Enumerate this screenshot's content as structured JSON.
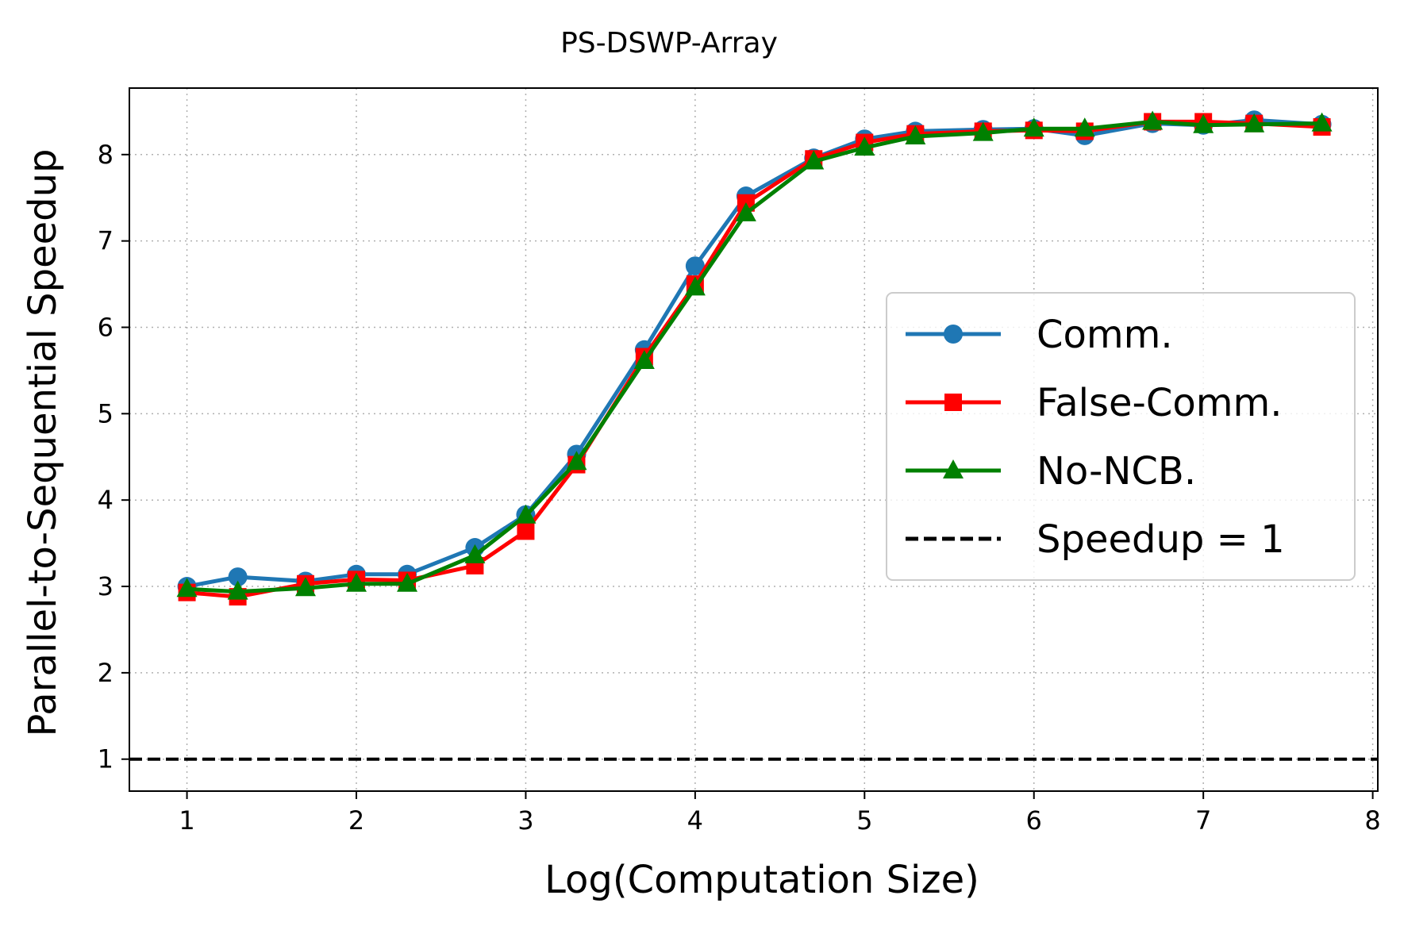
{
  "chart_data": {
    "type": "line",
    "title": "PS-DSWP-Array",
    "xlabel": "Log(Computation Size)",
    "ylabel": "Parallel-to-Sequential Speedup",
    "xlim": [
      0.66,
      8.03
    ],
    "ylim": [
      0.63,
      8.77
    ],
    "xticks": [
      "1",
      "2",
      "3",
      "4",
      "5",
      "6",
      "7",
      "8"
    ],
    "yticks": [
      "1",
      "2",
      "3",
      "4",
      "5",
      "6",
      "7",
      "8"
    ],
    "grid": true,
    "legend_position": "center-right",
    "x": [
      1.0,
      1.3,
      1.7,
      2.0,
      2.3,
      2.7,
      3.0,
      3.3,
      3.7,
      4.0,
      4.3,
      4.7,
      5.0,
      5.3,
      5.7,
      6.0,
      6.3,
      6.7,
      7.0,
      7.3,
      7.7
    ],
    "series": [
      {
        "name": "Comm.",
        "color": "#1f77b4",
        "marker": "circle",
        "values": [
          3.0,
          3.11,
          3.06,
          3.14,
          3.14,
          3.45,
          3.83,
          4.53,
          5.74,
          6.71,
          7.52,
          7.96,
          8.18,
          8.27,
          8.29,
          8.3,
          8.22,
          8.36,
          8.34,
          8.4,
          8.35
        ]
      },
      {
        "name": "False-Comm.",
        "color": "#ff0000",
        "marker": "square",
        "values": [
          2.93,
          2.88,
          3.03,
          3.08,
          3.07,
          3.24,
          3.64,
          4.41,
          5.66,
          6.5,
          7.44,
          7.95,
          8.14,
          8.24,
          8.27,
          8.28,
          8.27,
          8.38,
          8.38,
          8.36,
          8.32
        ]
      },
      {
        "name": "No-NCB.",
        "color": "#008000",
        "marker": "triangle",
        "values": [
          2.97,
          2.94,
          2.98,
          3.03,
          3.03,
          3.36,
          3.82,
          4.44,
          5.61,
          6.46,
          7.32,
          7.92,
          8.08,
          8.21,
          8.25,
          8.3,
          8.3,
          8.38,
          8.34,
          8.35,
          8.36
        ]
      }
    ],
    "reference_line": {
      "name": "Speedup = 1",
      "y": 1,
      "color": "#000000",
      "style": "dashed"
    }
  }
}
